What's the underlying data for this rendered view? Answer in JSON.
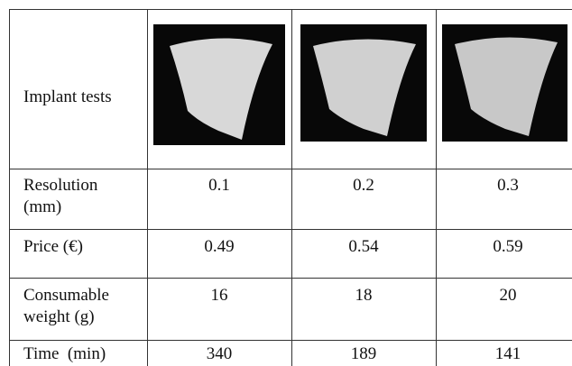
{
  "header": {
    "label": "Implant tests"
  },
  "rows": [
    {
      "label": "Resolution (mm)",
      "values": [
        "0.1",
        "0.2",
        "0.3"
      ]
    },
    {
      "label": "Price (€)",
      "values": [
        "0.49",
        "0.54",
        "0.59"
      ]
    },
    {
      "label": "Consumable weight (g)",
      "values": [
        "16",
        "18",
        "20"
      ]
    },
    {
      "label": "Time  (min)",
      "values": [
        "340",
        "189",
        "141"
      ]
    }
  ]
}
